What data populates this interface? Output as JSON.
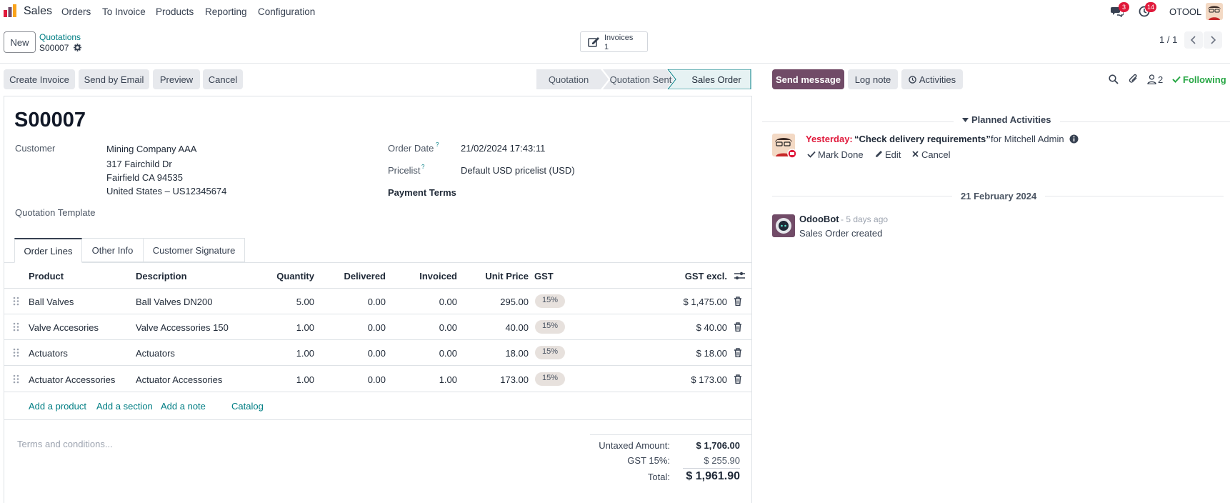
{
  "topbar": {
    "app_name": "Sales",
    "menu": [
      "Orders",
      "To Invoice",
      "Products",
      "Reporting",
      "Configuration"
    ],
    "messages_count": "3",
    "activities_count": "14",
    "company": "OTOOL",
    "brand_colors": {
      "orange": "#f9a31b",
      "red": "#e0193b",
      "purple": "#714b67"
    }
  },
  "control": {
    "new_label": "New",
    "breadcrumb_parent": "Quotations",
    "breadcrumb_current": "S00007",
    "invoices_label": "Invoices",
    "invoices_count": "1",
    "pager": "1 / 1"
  },
  "actions": {
    "create_invoice": "Create Invoice",
    "send_by_email": "Send by Email",
    "preview": "Preview",
    "cancel": "Cancel"
  },
  "statusbar": {
    "stages": [
      "Quotation",
      "Quotation Sent",
      "Sales Order"
    ],
    "active": "Sales Order"
  },
  "form": {
    "title": "S00007",
    "customer_label": "Customer",
    "customer_name": "Mining Company AAA",
    "address_line1": "317 Fairchild Dr",
    "address_line2": "Fairfield CA 94535",
    "address_line3": "United States – US12345674",
    "quotation_template_label": "Quotation Template",
    "order_date_label": "Order Date",
    "order_date": "21/02/2024 17:43:11",
    "pricelist_label": "Pricelist",
    "pricelist": "Default USD pricelist (USD)",
    "payment_terms_label": "Payment Terms",
    "help_mark": "?"
  },
  "tabs": [
    "Order Lines",
    "Other Info",
    "Customer Signature"
  ],
  "table": {
    "headers": {
      "product": "Product",
      "description": "Description",
      "quantity": "Quantity",
      "delivered": "Delivered",
      "invoiced": "Invoiced",
      "unit_price": "Unit Price",
      "tax": "GST",
      "subtotal": "GST excl."
    },
    "rows": [
      {
        "product": "Ball Valves",
        "description": "Ball Valves DN200",
        "quantity": "5.00",
        "delivered": "0.00",
        "invoiced": "0.00",
        "unit_price": "295.00",
        "tax": "15%",
        "subtotal": "$ 1,475.00"
      },
      {
        "product": "Valve Accesories",
        "description": "Valve Accessories 150",
        "quantity": "1.00",
        "delivered": "0.00",
        "invoiced": "0.00",
        "unit_price": "40.00",
        "tax": "15%",
        "subtotal": "$ 40.00"
      },
      {
        "product": "Actuators",
        "description": "Actuators",
        "quantity": "1.00",
        "delivered": "0.00",
        "invoiced": "0.00",
        "unit_price": "18.00",
        "tax": "15%",
        "subtotal": "$ 18.00"
      },
      {
        "product": "Actuator Accessories",
        "description": "Actuator Accessories",
        "quantity": "1.00",
        "delivered": "0.00",
        "invoiced": "1.00",
        "unit_price": "173.00",
        "tax": "15%",
        "subtotal": "$ 173.00"
      }
    ],
    "add_product": "Add a product",
    "add_section": "Add a section",
    "add_note": "Add a note",
    "catalog": "Catalog"
  },
  "footer": {
    "terms_placeholder": "Terms and conditions...",
    "untaxed_label": "Untaxed Amount:",
    "untaxed_value": "$ 1,706.00",
    "gst_label": "GST 15%:",
    "gst_value": "$ 255.90",
    "total_label": "Total:",
    "total_value": "$ 1,961.90"
  },
  "chatter": {
    "send_message": "Send message",
    "log_note": "Log note",
    "activities": "Activities",
    "followers_count": "2",
    "following": "Following",
    "planned_activities": "Planned Activities",
    "activity_when": "Yesterday:",
    "activity_summary": "“Check delivery requirements”",
    "activity_for": "for Mitchell Admin",
    "mark_done": "Mark Done",
    "edit": "Edit",
    "cancel": "Cancel",
    "date_separator": "21 February 2024",
    "message_author": "OdooBot",
    "message_time": "- 5 days ago",
    "message_body": "Sales Order created"
  }
}
